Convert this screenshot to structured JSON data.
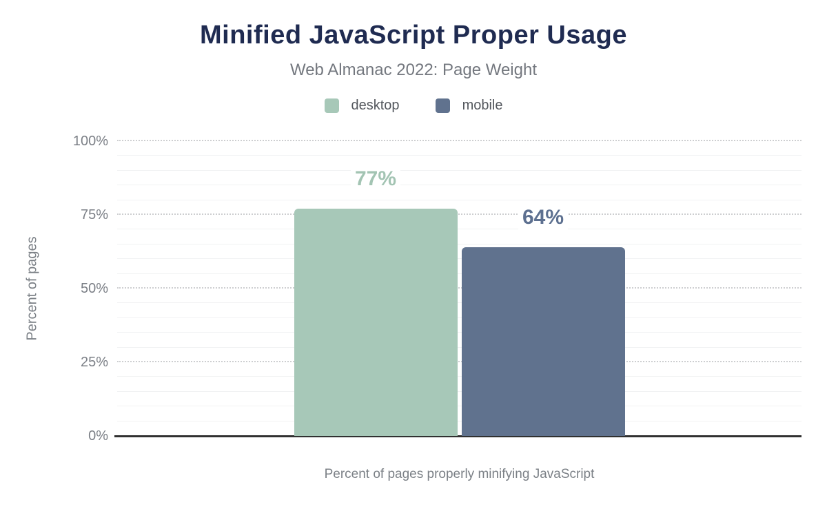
{
  "header": {
    "title": "Minified JavaScript Proper Usage",
    "subtitle": "Web Almanac 2022: Page Weight"
  },
  "legend": {
    "items": [
      {
        "label": "desktop",
        "color": "#a7c8b8"
      },
      {
        "label": "mobile",
        "color": "#60728e"
      }
    ]
  },
  "axes": {
    "y_title": "Percent of pages",
    "x_title": "Percent of pages properly minifying JavaScript"
  },
  "chart_data": {
    "type": "bar",
    "title": "Minified JavaScript Proper Usage",
    "subtitle": "Web Almanac 2022: Page Weight",
    "categories": [
      "Percent of pages properly minifying JavaScript"
    ],
    "series": [
      {
        "name": "desktop",
        "values": [
          77
        ],
        "color": "#a7c8b8",
        "data_label": "77%",
        "label_color": "#a3c4b3"
      },
      {
        "name": "mobile",
        "values": [
          64
        ],
        "color": "#60728e",
        "data_label": "64%",
        "label_color": "#5d7090"
      }
    ],
    "xlabel": "Percent of pages properly minifying JavaScript",
    "ylabel": "Percent of pages",
    "ylim": [
      0,
      100
    ],
    "yticks": [
      0,
      25,
      50,
      75,
      100
    ],
    "ytick_labels": [
      "0%",
      "25%",
      "50%",
      "75%",
      "100%"
    ],
    "minor_gridline_step": 5,
    "grid": "major dotted, minor solid",
    "legend_position": "top"
  },
  "palette": {
    "background": "#ffffff",
    "title_color": "#1f2b51",
    "subtitle_color": "#74787f",
    "legend_text_color": "#53575d",
    "axis_text_color": "#7b8086",
    "axis_line_color": "#303030",
    "major_grid_color": "#cdced0",
    "minor_grid_color": "#f1f2f3"
  }
}
